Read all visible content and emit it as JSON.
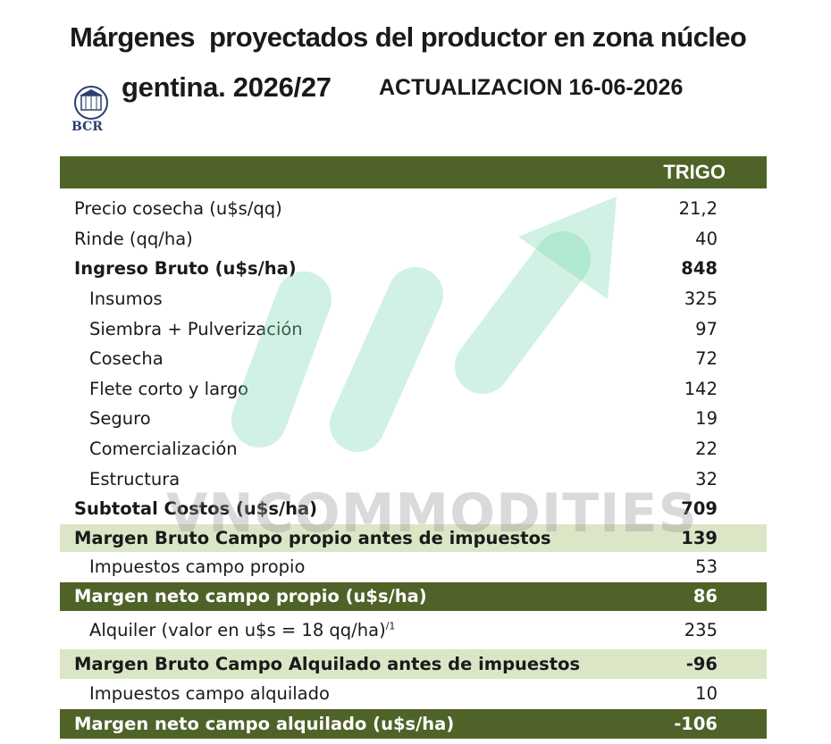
{
  "header": {
    "title_line1": "Márgenes  proyectados del productor en zona núcleo",
    "title_line2": "gentina. 2026/27",
    "update": "ACTUALIZACION 16-06-2026",
    "logo": "BCR"
  },
  "watermark": "VNCOMMODITIES",
  "table": {
    "column": "TRIGO",
    "rows": [
      {
        "label": "Precio cosecha (u$s/qq)",
        "value": "21,2"
      },
      {
        "label": "Rinde (qq/ha)",
        "value": 40
      },
      {
        "label": "Ingreso Bruto (u$s/ha)",
        "value": 848
      },
      {
        "label": "Insumos",
        "value": 325
      },
      {
        "label": "Siembra + Pulverización",
        "value": 97
      },
      {
        "label": "Cosecha",
        "value": 72
      },
      {
        "label": "Flete corto y largo",
        "value": 142
      },
      {
        "label": "Seguro",
        "value": 19
      },
      {
        "label": "Comercialización",
        "value": 22
      },
      {
        "label": "Estructura",
        "value": 32
      },
      {
        "label": "Subtotal Costos (u$s/ha)",
        "value": 709
      },
      {
        "label": "Margen Bruto Campo propio antes de impuestos",
        "value": 139
      },
      {
        "label": "Impuestos  campo propio",
        "value": 53
      },
      {
        "label": "Margen neto campo propio (u$s/ha)",
        "value": 86
      },
      {
        "label": "Alquiler (valor en u$s = 18 qq/ha)",
        "note": "/1",
        "value": 235
      },
      {
        "label": "Margen Bruto Campo Alquilado antes de impuestos",
        "value": -96
      },
      {
        "label": "Impuestos campo alquilado",
        "value": 10
      },
      {
        "label": "Margen neto campo alquilado (u$s/ha)",
        "value": -106
      }
    ]
  }
}
